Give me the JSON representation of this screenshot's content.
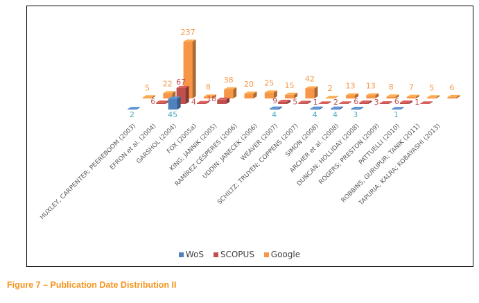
{
  "chart_data": {
    "type": "bar",
    "style": "3d-column",
    "categories": [
      "HUXLEY, CARPENTER; PEEREBOOM (2003)",
      "EFRON et al. (2004)",
      "GARSHOL (2004)",
      "FOX (2005a)",
      "KING; JANNIK (2005)",
      "RAMÍREZ CÉSPERES (2006)",
      "UDDIN; JANECEK (2006)",
      "WEAVER (2007)",
      "SCHILTZ; TRUYEN; COPPENS (2007)",
      "SIMON (2008)",
      "ARCHER et al. (2008)",
      "DUNCAN; HOLLIDAY (2008)",
      "ROGERS; PRESTON (2009)",
      "PATTUELLI (2010)",
      "ROBBINS, GURUPUR; TANIK (2011)",
      "TAPURIA; KALRA; KOBAYASHI (2013)"
    ],
    "series": [
      {
        "name": "WoS",
        "color": "#4f81bd",
        "label_color": "#4bacc6",
        "values": [
          2,
          null,
          45,
          null,
          null,
          null,
          null,
          4,
          null,
          4,
          4,
          3,
          null,
          1,
          null,
          null
        ]
      },
      {
        "name": "SCOPUS",
        "color": "#c0504d",
        "label_color": "#c0504d",
        "values": [
          null,
          6,
          67,
          4,
          18,
          null,
          null,
          9,
          5,
          1,
          2,
          6,
          3,
          6,
          1,
          null
        ]
      },
      {
        "name": "Google",
        "color": "#f79646",
        "label_color": "#f79646",
        "values": [
          5,
          22,
          237,
          8,
          38,
          20,
          25,
          15,
          42,
          2,
          13,
          13,
          8,
          7,
          5,
          6
        ]
      }
    ],
    "legend_position": "bottom",
    "grid": false,
    "data_labels": true
  },
  "caption": "Figure 7 – Publication Date Distribution II"
}
